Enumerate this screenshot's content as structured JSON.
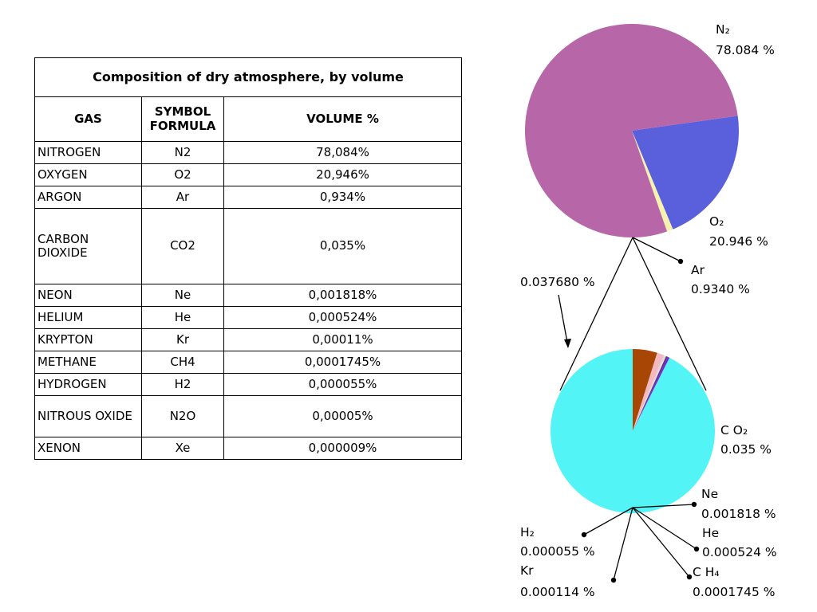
{
  "table": {
    "title": "Composition of dry atmosphere, by volume",
    "headers": [
      "GAS",
      "SYMBOL FORMULA",
      "VOLUME %"
    ],
    "rows": [
      {
        "gas": "NITROGEN",
        "symbol": "N2",
        "volume": "78,084%"
      },
      {
        "gas": "OXYGEN",
        "symbol": "O2",
        "volume": "20,946%"
      },
      {
        "gas": "ARGON",
        "symbol": "Ar",
        "volume": "0,934%"
      },
      {
        "gas": "CARBON DIOXIDE",
        "symbol": "CO2",
        "volume": "0,035%"
      },
      {
        "gas": "NEON",
        "symbol": "Ne",
        "volume": "0,001818%"
      },
      {
        "gas": "HELIUM",
        "symbol": "He",
        "volume": "0,000524%"
      },
      {
        "gas": "KRYPTON",
        "symbol": "Kr",
        "volume": "0,00011%"
      },
      {
        "gas": "METHANE",
        "symbol": "CH4",
        "volume": "0,0001745%"
      },
      {
        "gas": "HYDROGEN",
        "symbol": "H2",
        "volume": "0,000055%"
      },
      {
        "gas": "NITROUS OXIDE",
        "symbol": "N2O",
        "volume": "0,00005%"
      },
      {
        "gas": "XENON",
        "symbol": "Xe",
        "volume": "0,000009%"
      }
    ]
  },
  "chart_data": [
    {
      "type": "pie",
      "slices": [
        {
          "label": "N₂",
          "value_text": "78.084 %",
          "value": 78.084,
          "color": "#b766a8"
        },
        {
          "label": "O₂",
          "value_text": "20.946 %",
          "value": 20.946,
          "color": "#5a5fdc"
        },
        {
          "label": "Ar",
          "value_text": "0.9340 %",
          "value": 0.934,
          "color": "#f7f2ae"
        }
      ],
      "callout_label": "0.037680 %"
    },
    {
      "type": "pie",
      "slices": [
        {
          "label": "C O₂",
          "value_text": "0.035 %",
          "value": 0.035,
          "color": "#52f4f6"
        },
        {
          "label": "Ne",
          "value_text": "0.001818 %",
          "value": 0.001818,
          "color": "#a84705"
        },
        {
          "label": "He",
          "value_text": "0.000524 %",
          "value": 0.000524,
          "color": "#f4b8c0"
        },
        {
          "label": "C H₄",
          "value_text": "0.0001745 %",
          "value": 0.0001745,
          "color": "#dcdcdc"
        },
        {
          "label": "Kr",
          "value_text": "0.000114 %",
          "value": 0.000114,
          "color": "#5f2f88"
        },
        {
          "label": "H₂",
          "value_text": "0.000055 %",
          "value": 5.5e-05,
          "color": "#7b1fd6"
        }
      ]
    }
  ]
}
